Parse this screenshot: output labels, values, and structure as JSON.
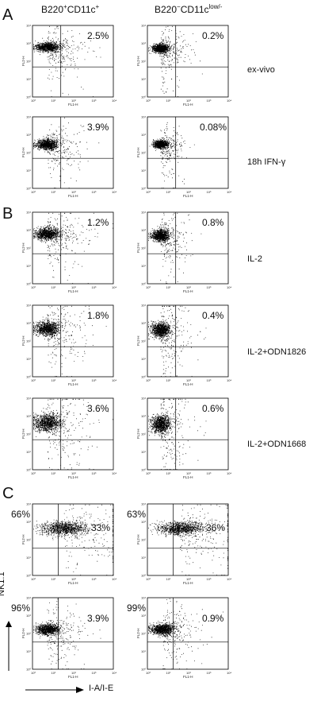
{
  "columns": {
    "left": {
      "base": "B220",
      "sup1": "+",
      "mid": "CD11c",
      "sup2": "+"
    },
    "right": {
      "base": "B220",
      "sup1": "−",
      "mid": "CD11c",
      "sup2": "low/-"
    }
  },
  "panels": {
    "A": "A",
    "B": "B",
    "C": "C"
  },
  "conditions": {
    "exvivo": "ex-vivo",
    "ifn": "18h IFN-γ",
    "il2": "IL-2",
    "odn1826": "IL-2+ODN1826",
    "odn1668": "IL-2+ODN1668"
  },
  "axes": {
    "x_small": "FL1-H",
    "y_small": "FL2-H",
    "x_small_c2": "FL1-H",
    "y_title": "NK1.1",
    "x_title": "I-A/I-E",
    "ticks": [
      "10⁰",
      "10¹",
      "10²",
      "10³",
      "10⁴"
    ]
  },
  "chart_data": [
    {
      "type": "scatter",
      "panel": "A",
      "row": "ex-vivo",
      "column": "B220+CD11c+",
      "quadrant_percent": "2.5%"
    },
    {
      "type": "scatter",
      "panel": "A",
      "row": "ex-vivo",
      "column": "B220-CD11clow/-",
      "quadrant_percent": "0.2%"
    },
    {
      "type": "scatter",
      "panel": "A",
      "row": "18h IFN-γ",
      "column": "B220+CD11c+",
      "quadrant_percent": "3.9%"
    },
    {
      "type": "scatter",
      "panel": "A",
      "row": "18h IFN-γ",
      "column": "B220-CD11clow/-",
      "quadrant_percent": "0.08%"
    },
    {
      "type": "scatter",
      "panel": "B",
      "row": "IL-2",
      "column": "B220+CD11c+",
      "quadrant_percent": "1.2%"
    },
    {
      "type": "scatter",
      "panel": "B",
      "row": "IL-2",
      "column": "B220-CD11clow/-",
      "quadrant_percent": "0.8%"
    },
    {
      "type": "scatter",
      "panel": "B",
      "row": "IL-2+ODN1826",
      "column": "B220+CD11c+",
      "quadrant_percent": "1.8%"
    },
    {
      "type": "scatter",
      "panel": "B",
      "row": "IL-2+ODN1826",
      "column": "B220-CD11clow/-",
      "quadrant_percent": "0.4%"
    },
    {
      "type": "scatter",
      "panel": "B",
      "row": "IL-2+ODN1668",
      "column": "B220+CD11c+",
      "quadrant_percent": "3.6%"
    },
    {
      "type": "scatter",
      "panel": "B",
      "row": "IL-2+ODN1668",
      "column": "B220-CD11clow/-",
      "quadrant_percent": "0.6%"
    },
    {
      "type": "scatter",
      "panel": "C",
      "row": 1,
      "column": "B220+CD11c+",
      "quadrant_percent_left": "66%",
      "quadrant_percent_right": "33%"
    },
    {
      "type": "scatter",
      "panel": "C",
      "row": 1,
      "column": "B220-CD11clow/-",
      "quadrant_percent_left": "63%",
      "quadrant_percent_right": "36%"
    },
    {
      "type": "scatter",
      "panel": "C",
      "row": 2,
      "column": "B220+CD11c+",
      "quadrant_percent_left": "96%",
      "quadrant_percent_right": "3.9%"
    },
    {
      "type": "scatter",
      "panel": "C",
      "row": 2,
      "column": "B220-CD11clow/-",
      "quadrant_percent_left": "99%",
      "quadrant_percent_right": "0.9%"
    }
  ]
}
